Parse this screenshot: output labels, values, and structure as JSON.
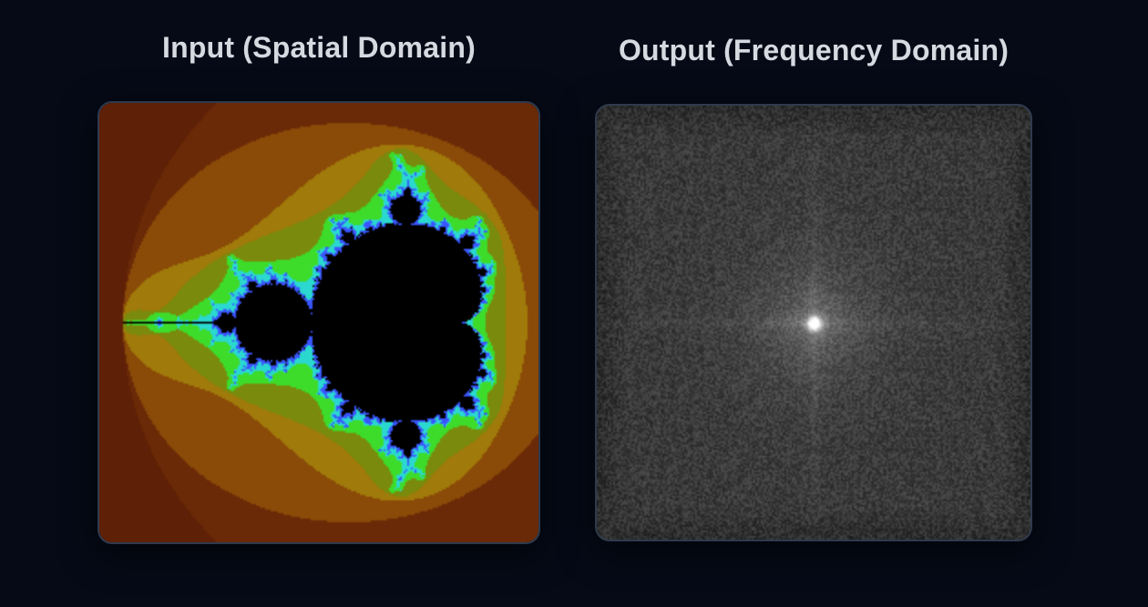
{
  "input_panel": {
    "title": "Input (Spatial Domain)",
    "image": "mandelbrot-set",
    "palette": {
      "background": "#5e2006",
      "outer_band": "#6b2a07",
      "mid_band": "#8a4a08",
      "inner_band": "#a07a0a",
      "near_band": "#7a8a0c",
      "edge_green": "#3ddc2a",
      "edge_cyan": "#2ad8d0",
      "edge_blue": "#3a55ff",
      "interior": "#000000"
    }
  },
  "output_panel": {
    "title": "Output (Frequency Domain)",
    "image": "fft-magnitude-spectrum",
    "palette": {
      "background": "#3c3c3c",
      "center": "#ffffff"
    }
  }
}
